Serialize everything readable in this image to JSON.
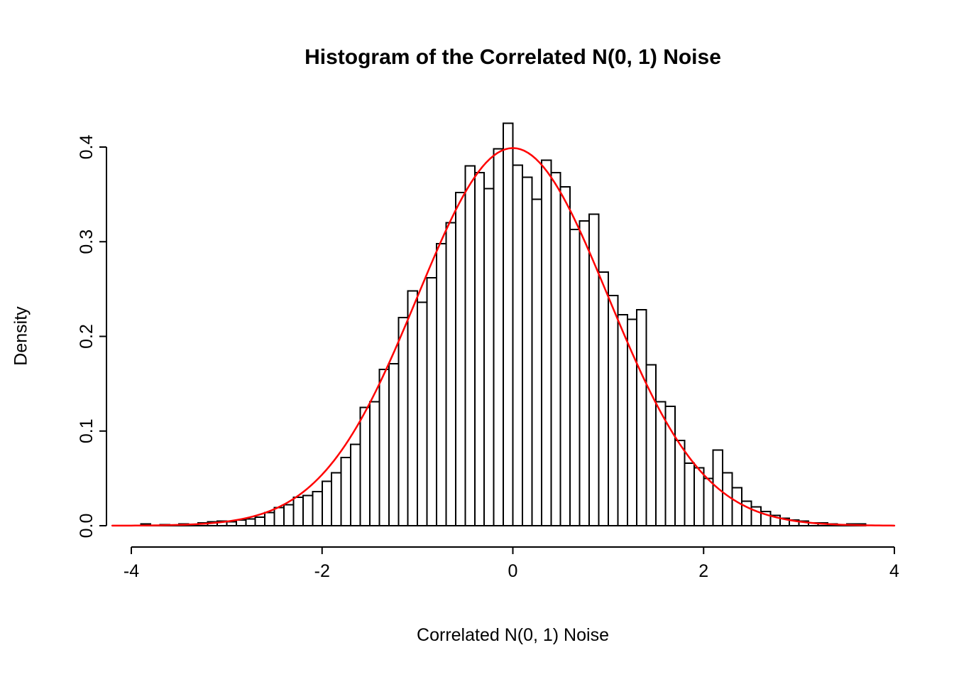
{
  "chart_data": {
    "type": "bar",
    "subtype": "histogram",
    "title": "Histogram of the Correlated N(0, 1) Noise",
    "xlabel": "Correlated N(0, 1) Noise",
    "ylabel": "Density",
    "xlim": [
      -4,
      4
    ],
    "ylim": [
      0,
      0.4
    ],
    "grid": false,
    "legend": "none",
    "x_ticks": [
      {
        "label": "-4",
        "value": -4
      },
      {
        "label": "-2",
        "value": -2
      },
      {
        "label": "0",
        "value": 0
      },
      {
        "label": "2",
        "value": 2
      },
      {
        "label": "4",
        "value": 4
      }
    ],
    "y_ticks": [
      {
        "label": "0.0",
        "value": 0.0
      },
      {
        "label": "0.1",
        "value": 0.1
      },
      {
        "label": "0.2",
        "value": 0.2
      },
      {
        "label": "0.3",
        "value": 0.3
      },
      {
        "label": "0.4",
        "value": 0.4
      }
    ],
    "bin_width": 0.1,
    "first_bin_left": -3.9,
    "densities": [
      0.002,
      0.0,
      0.001,
      0.0,
      0.002,
      0.001,
      0.003,
      0.004,
      0.005,
      0.004,
      0.006,
      0.007,
      0.009,
      0.014,
      0.019,
      0.022,
      0.03,
      0.032,
      0.036,
      0.047,
      0.056,
      0.072,
      0.086,
      0.125,
      0.131,
      0.165,
      0.171,
      0.22,
      0.248,
      0.236,
      0.262,
      0.298,
      0.32,
      0.352,
      0.38,
      0.373,
      0.356,
      0.398,
      0.425,
      0.381,
      0.368,
      0.345,
      0.386,
      0.373,
      0.358,
      0.313,
      0.322,
      0.329,
      0.268,
      0.243,
      0.223,
      0.218,
      0.228,
      0.17,
      0.131,
      0.126,
      0.09,
      0.066,
      0.061,
      0.05,
      0.08,
      0.056,
      0.04,
      0.026,
      0.02,
      0.015,
      0.011,
      0.008,
      0.006,
      0.005,
      0.003,
      0.003,
      0.002,
      0.001,
      0.002,
      0.002
    ],
    "bar_fill": "#ffffff",
    "bar_stroke": "#000000",
    "axis_color": "#000000",
    "overlay_curve": {
      "type": "normal-density",
      "mean": 0,
      "sd": 1,
      "color": "#ff0000",
      "range": [
        -4.2,
        4.03
      ]
    },
    "background": "#ffffff"
  }
}
